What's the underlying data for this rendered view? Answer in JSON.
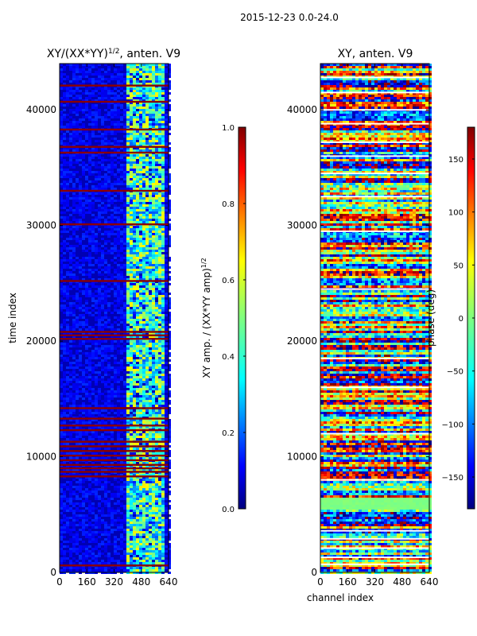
{
  "figure": {
    "suptitle": "2015-12-23 0.0-24.0",
    "shared_xlabel": "channel index"
  },
  "chart_data": [
    {
      "type": "heatmap",
      "title": "XY/(XX*YY)",
      "title_exponent": "1/2",
      "title_suffix": ", anten. V9",
      "xlabel": "",
      "ylabel": "time index",
      "xlim": [
        0,
        640
      ],
      "ylim": [
        0,
        44000
      ],
      "xticks": [
        "0",
        "160",
        "320",
        "480",
        "640"
      ],
      "yticks": [
        "0",
        "10000",
        "20000",
        "30000",
        "40000"
      ],
      "colorbar": {
        "label": "XY amp. / (XX*YY amp)",
        "label_exponent": "1/2",
        "range": [
          0.0,
          1.0
        ],
        "ticks": [
          "0.0",
          "0.2",
          "0.4",
          "0.6",
          "0.8",
          "1.0"
        ]
      },
      "colormap": "jet",
      "background_level": 0.05,
      "bright_channel_band": [
        400,
        620
      ],
      "saturated_time_rows": [
        600,
        8300,
        8700,
        9000,
        9300,
        9700,
        10100,
        10500,
        10900,
        11300,
        12300,
        12700,
        13300,
        14200,
        20200,
        20500,
        20800,
        25200,
        30100,
        33000,
        36300,
        36800,
        38300,
        40700,
        42100
      ]
    },
    {
      "type": "heatmap",
      "title": "XY, anten. V9",
      "xlabel": "channel index",
      "ylabel": "",
      "xlim": [
        0,
        640
      ],
      "ylim": [
        0,
        44000
      ],
      "xticks": [
        "0",
        "160",
        "320",
        "480",
        "640"
      ],
      "yticks": [
        "0",
        "10000",
        "20000",
        "30000",
        "40000"
      ],
      "colorbar": {
        "label": "phase (deg)",
        "range": [
          -180,
          180
        ],
        "ticks": [
          "−150",
          "−100",
          "−50",
          "0",
          "50",
          "100",
          "150"
        ]
      },
      "colormap": "jet",
      "uniform_phase_band_time": [
        5500,
        6500
      ],
      "uniform_phase_value": 0,
      "flagged_time_rows": [
        700,
        1300,
        2100,
        2900,
        3600,
        8000,
        12000,
        16000,
        18500,
        24500,
        29500,
        32500,
        34500,
        36000,
        37200,
        38800,
        40000,
        41500,
        42800
      ]
    }
  ]
}
